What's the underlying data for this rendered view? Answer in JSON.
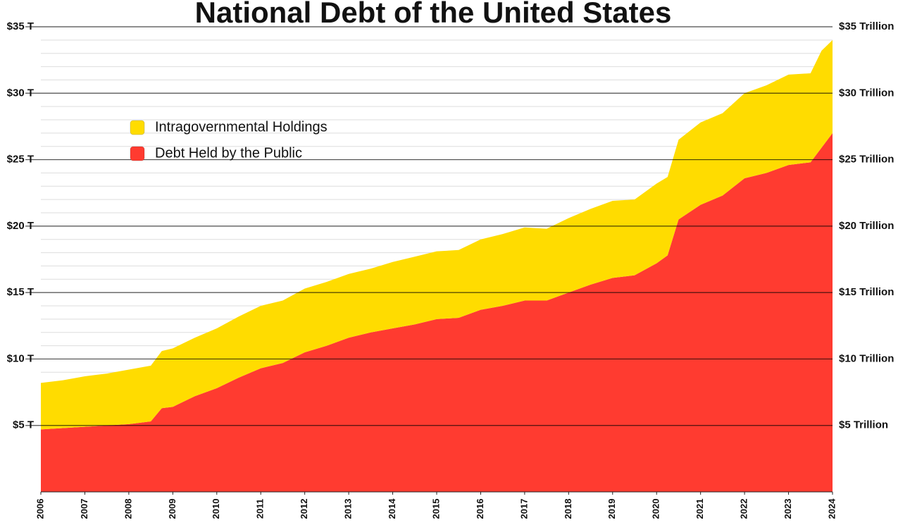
{
  "chart_data": {
    "type": "stacked-area",
    "title": "National Debt of the United States",
    "x": [
      2006,
      2006.5,
      2007,
      2007.5,
      2008,
      2008.5,
      2008.75,
      2009,
      2009.5,
      2010,
      2010.5,
      2011,
      2011.5,
      2012,
      2012.5,
      2013,
      2013.5,
      2014,
      2014.5,
      2015,
      2015.5,
      2016,
      2016.5,
      2017,
      2017.5,
      2018,
      2018.5,
      2019,
      2019.5,
      2020,
      2020.25,
      2020.5,
      2021,
      2021.5,
      2022,
      2022.5,
      2023,
      2023.5,
      2023.75,
      2024
    ],
    "series": [
      {
        "name": "Debt Held by the Public",
        "color": "#ff3b30",
        "values": [
          4.7,
          4.8,
          4.9,
          5.0,
          5.1,
          5.3,
          6.3,
          6.4,
          7.2,
          7.8,
          8.6,
          9.3,
          9.7,
          10.5,
          11.0,
          11.6,
          12.0,
          12.3,
          12.6,
          13.0,
          13.1,
          13.7,
          14.0,
          14.4,
          14.4,
          15.0,
          15.6,
          16.1,
          16.3,
          17.2,
          17.8,
          20.5,
          21.6,
          22.3,
          23.6,
          24.0,
          24.6,
          24.8,
          25.9,
          27.0
        ]
      },
      {
        "name": "Intragovernmental Holdings",
        "color": "#ffdc00",
        "values": [
          3.5,
          3.6,
          3.8,
          3.9,
          4.1,
          4.2,
          4.3,
          4.4,
          4.4,
          4.5,
          4.6,
          4.7,
          4.7,
          4.8,
          4.8,
          4.8,
          4.8,
          5.0,
          5.1,
          5.1,
          5.1,
          5.3,
          5.4,
          5.5,
          5.4,
          5.6,
          5.7,
          5.8,
          5.7,
          6.0,
          5.9,
          6.0,
          6.2,
          6.2,
          6.4,
          6.6,
          6.8,
          6.7,
          7.3,
          7.0
        ]
      }
    ],
    "xlim": [
      2006,
      2024
    ],
    "xticks": [
      2006,
      2007,
      2008,
      2009,
      2010,
      2011,
      2012,
      2013,
      2014,
      2015,
      2016,
      2017,
      2018,
      2019,
      2020,
      2021,
      2022,
      2023,
      2024
    ],
    "ylim": [
      0,
      35
    ],
    "yticks": [
      {
        "value": 5,
        "label": "$5 T"
      },
      {
        "value": 10,
        "label": "$10 T"
      },
      {
        "value": 15,
        "label": "$15 T"
      },
      {
        "value": 20,
        "label": "$20 T"
      },
      {
        "value": 25,
        "label": "$25 T"
      },
      {
        "value": 30,
        "label": "$30 T"
      },
      {
        "value": 35,
        "label": "$35 T"
      }
    ],
    "y2lim": [
      0,
      35
    ],
    "y2ticks": [
      {
        "value": 5,
        "label": "$5 Trillion"
      },
      {
        "value": 10,
        "label": "$10 Trillion"
      },
      {
        "value": 15,
        "label": "$15 Trillion"
      },
      {
        "value": 20,
        "label": "$20 Trillion"
      },
      {
        "value": 25,
        "label": "$25 Trillion"
      },
      {
        "value": 30,
        "label": "$30 Trillion"
      },
      {
        "value": 35,
        "label": "$35 Trillion"
      }
    ],
    "minor_yticks": [
      1,
      2,
      3,
      4,
      6,
      7,
      8,
      9,
      11,
      12,
      13,
      14,
      16,
      17,
      18,
      19,
      21,
      22,
      23,
      24,
      26,
      27,
      28,
      29,
      31,
      32,
      33,
      34
    ],
    "grid": true,
    "legend": "upper left"
  }
}
